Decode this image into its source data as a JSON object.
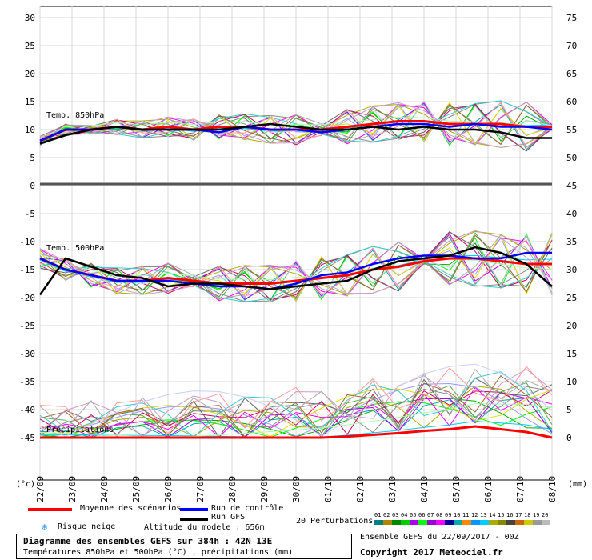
{
  "header": {},
  "chart_data": {
    "type": "line",
    "left_axis_unit": "(°c)",
    "right_axis_unit": "(mm)",
    "left_ticks": [
      30,
      25,
      20,
      15,
      10,
      5,
      0,
      -5,
      -10,
      -15,
      -20,
      -25,
      -30,
      -35,
      -40,
      -45
    ],
    "right_ticks_temp": [
      75,
      70,
      65,
      60,
      55,
      50,
      45
    ],
    "right_ticks_500": [
      40,
      35,
      30,
      25,
      20,
      15,
      10,
      5,
      0
    ],
    "x_labels": [
      "22/09",
      "23/09",
      "24/09",
      "25/09",
      "26/09",
      "27/09",
      "28/09",
      "29/09",
      "30/09",
      "01/10",
      "02/10",
      "03/10",
      "04/10",
      "05/10",
      "06/10",
      "07/10",
      "08/10"
    ],
    "panel_labels": {
      "t850": "Temp. 850hPa",
      "t500": "Temp. 500hPa",
      "precip": "Précipitations"
    },
    "series": [
      {
        "name": "Moyenne des scénarios",
        "color": "#ff0000",
        "t850": [
          8,
          10,
          10,
          10.5,
          10,
          10.5,
          10,
          10.5,
          10.5,
          10,
          10,
          10,
          10.5,
          11,
          11.5,
          11.5,
          11,
          11,
          11,
          10.5,
          10.5
        ],
        "t500": [
          -13,
          -15,
          -16,
          -17,
          -17,
          -16.5,
          -17,
          -17.5,
          -17.5,
          -17.5,
          -17,
          -16.5,
          -16,
          -15,
          -14.5,
          -13.5,
          -13,
          -13,
          -13.5,
          -14,
          -14
        ],
        "precip": [
          0,
          0,
          0,
          0,
          0,
          0,
          0,
          0,
          0,
          0,
          0,
          0,
          0.2,
          0.5,
          0.8,
          1.2,
          1.5,
          2,
          1.5,
          1,
          0
        ]
      },
      {
        "name": "Run de contrôle",
        "color": "#0000ff",
        "t850": [
          8,
          10,
          10,
          10.5,
          10,
          10,
          10,
          9.5,
          10.5,
          10,
          10,
          9.5,
          10,
          10.5,
          11,
          11,
          10.5,
          11,
          10.5,
          10.5,
          10
        ],
        "t500": [
          -13,
          -15,
          -16,
          -17,
          -17,
          -17,
          -17.5,
          -18,
          -18,
          -18.5,
          -17.5,
          -16,
          -15.5,
          -14,
          -13,
          -12.5,
          -12.5,
          -13,
          -13,
          -12,
          -12
        ]
      },
      {
        "name": "Run GFS",
        "color": "#000000",
        "t850": [
          7.5,
          9,
          10,
          10.5,
          10,
          10,
          10,
          10,
          10.5,
          11,
          10.5,
          10,
          10,
          10.5,
          10,
          10.5,
          10,
          10,
          9.5,
          8.5,
          8.5
        ],
        "t500": [
          -19.5,
          -13,
          -14.5,
          -16,
          -16.5,
          -18,
          -17.5,
          -17.5,
          -18,
          -18.5,
          -18,
          -17.5,
          -17,
          -15,
          -13.5,
          -13,
          -12.5,
          -11,
          -12,
          -14,
          -18
        ]
      }
    ],
    "ensemble_line_colors": [
      "#00aaaa",
      "#00aa00",
      "#00ff00",
      "#aa00ff",
      "#ff00ff",
      "#aaaa00",
      "#00ccff",
      "#888888",
      "#cc0066",
      "#55aa55",
      "#9999ff",
      "#dddd00",
      "#996633",
      "#666666",
      "#33cccc",
      "#aaffaa",
      "#cc99cc",
      "#aaaaaa",
      "#ff9999",
      "#ccccff"
    ]
  },
  "legend": {
    "mean": "Moyenne des scénarios",
    "control": "Run de contrôle",
    "gfs": "Run GFS",
    "snow": "Risque neige",
    "altitude": "Altitude du modele : 656m",
    "perturbations": "20 Perturbations",
    "pert_numbers": [
      "01",
      "02",
      "03",
      "04",
      "05",
      "06",
      "07",
      "08",
      "09",
      "10",
      "11",
      "12",
      "13",
      "14",
      "15",
      "16",
      "17",
      "18",
      "19",
      "20"
    ],
    "pert_colors": [
      "#008080",
      "#aa8800",
      "#008800",
      "#00cc00",
      "#aa00ff",
      "#00ff00",
      "#9900cc",
      "#ff00ff",
      "#000099",
      "#00aaaa",
      "#ff8800",
      "#0099ff",
      "#00ccff",
      "#aaaa00",
      "#888800",
      "#444444",
      "#cc6600",
      "#cccc00",
      "#999999",
      "#bbbbbb"
    ]
  },
  "footer": {
    "title": "Diagramme des ensembles GEFS sur 384h : 42N 13E",
    "subtitle": "Températures 850hPa et 500hPa (°C) , précipitations (mm)",
    "run": "Ensemble GEFS du 22/09/2017 - 00Z",
    "copyright": "Copyright 2017 Meteociel.fr"
  }
}
